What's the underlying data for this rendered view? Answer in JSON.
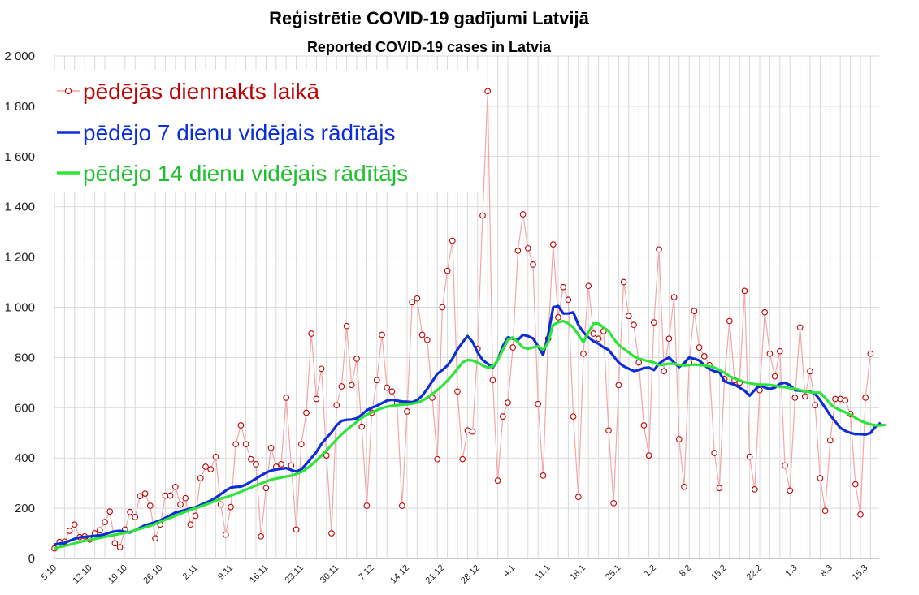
{
  "chart_data": {
    "type": "line",
    "title": "Reģistrētie COVID-19 gadījumi Latvijā",
    "subtitle": "Reported COVID-19 cases in Latvia",
    "xlabel": "",
    "ylabel": "",
    "ylim": [
      0,
      2000
    ],
    "yticks": [
      0,
      200,
      400,
      600,
      800,
      1000,
      1200,
      1400,
      1600,
      1800,
      2000
    ],
    "ytick_labels": [
      "0",
      "200",
      "400",
      "600",
      "800",
      "1 000",
      "1 200",
      "1 400",
      "1 600",
      "1 800",
      "2 000"
    ],
    "x_start": "2020-10-05",
    "xtick_labels": [
      "5.10",
      "12.10",
      "19.10",
      "26.10",
      "2.11",
      "9.11",
      "16.11",
      "23.11",
      "30.11",
      "7.12",
      "14.12",
      "21.12",
      "28.12",
      "4.1",
      "11.1",
      "18.1",
      "25.1",
      "1.2",
      "8.2",
      "15.2",
      "22.2",
      "1.3",
      "8.3",
      "15.3"
    ],
    "grid": true,
    "legend": "top-left",
    "series": [
      {
        "name": "pēdējās diennakts laikā",
        "color": "#c00000",
        "line_color": "#f4a6a6",
        "marker": "circle",
        "values": [
          40,
          66,
          67,
          110,
          135,
          85,
          88,
          75,
          100,
          112,
          145,
          187,
          60,
          45,
          115,
          185,
          165,
          248,
          258,
          210,
          80,
          135,
          250,
          250,
          285,
          215,
          240,
          135,
          170,
          320,
          365,
          355,
          405,
          215,
          95,
          205,
          455,
          530,
          455,
          395,
          375,
          88,
          280,
          440,
          365,
          375,
          640,
          370,
          115,
          455,
          580,
          895,
          635,
          755,
          410,
          100,
          610,
          685,
          925,
          690,
          795,
          525,
          210,
          580,
          710,
          890,
          680,
          665,
          620,
          210,
          585,
          1020,
          1035,
          890,
          870,
          640,
          395,
          1000,
          1145,
          1265,
          665,
          395,
          510,
          505,
          835,
          1365,
          1860,
          710,
          310,
          565,
          620,
          840,
          1225,
          1370,
          1235,
          1170,
          615,
          330,
          875,
          1250,
          960,
          1080,
          1030,
          565,
          245,
          815,
          1085,
          895,
          875,
          905,
          510,
          220,
          690,
          1100,
          965,
          930,
          780,
          530,
          410,
          940,
          1230,
          745,
          875,
          1040,
          475,
          285,
          780,
          985,
          840,
          805,
          770,
          420,
          280,
          715,
          945,
          710,
          700,
          1065,
          405,
          275,
          670,
          980,
          815,
          725,
          825,
          370,
          270,
          640,
          920,
          645,
          745,
          610,
          320,
          190,
          470,
          635,
          635,
          630,
          575,
          295,
          175,
          640,
          815
        ]
      },
      {
        "name": "pēdējo 7 dienu vidējais rādītājs",
        "color": "#0b2ed8",
        "values": [
          55,
          59,
          62,
          70,
          78,
          84,
          86,
          88,
          90,
          92,
          96,
          103,
          108,
          110,
          106,
          103,
          112,
          122,
          132,
          138,
          144,
          152,
          162,
          172,
          183,
          188,
          193,
          200,
          204,
          213,
          222,
          230,
          242,
          256,
          270,
          282,
          285,
          286,
          294,
          306,
          318,
          330,
          342,
          350,
          354,
          357,
          360,
          352,
          346,
          354,
          376,
          400,
          424,
          456,
          480,
          502,
          530,
          548,
          552,
          553,
          558,
          572,
          590,
          600,
          608,
          618,
          628,
          632,
          628,
          625,
          624,
          622,
          630,
          648,
          675,
          705,
          735,
          750,
          768,
          795,
          832,
          860,
          885,
          862,
          820,
          790,
          775,
          760,
          790,
          845,
          880,
          875,
          870,
          890,
          885,
          876,
          845,
          810,
          890,
          1000,
          1005,
          975,
          975,
          980,
          930,
          900,
          880,
          865,
          855,
          840,
          830,
          805,
          780,
          765,
          755,
          746,
          750,
          758,
          760,
          750,
          775,
          790,
          800,
          780,
          762,
          778,
          800,
          795,
          788,
          770,
          754,
          745,
          742,
          705,
          698,
          692,
          680,
          668,
          648,
          670,
          690,
          680,
          675,
          680,
          695,
          700,
          690,
          670,
          668,
          665,
          665,
          655,
          630,
          600,
          570,
          545,
          520,
          508,
          500,
          495,
          495,
          493,
          500,
          525,
          540
        ]
      },
      {
        "name": "pēdējo 14 dienu vidējais rādītājs",
        "color": "#2ee43a",
        "values": [
          40,
          46,
          50,
          55,
          60,
          66,
          70,
          74,
          78,
          82,
          86,
          90,
          94,
          98,
          102,
          106,
          112,
          118,
          124,
          130,
          138,
          146,
          154,
          162,
          170,
          178,
          186,
          194,
          200,
          207,
          214,
          222,
          230,
          238,
          244,
          250,
          258,
          266,
          274,
          282,
          290,
          298,
          306,
          314,
          318,
          322,
          326,
          330,
          336,
          344,
          356,
          372,
          390,
          410,
          430,
          452,
          474,
          494,
          512,
          528,
          544,
          560,
          572,
          582,
          590,
          598,
          604,
          608,
          610,
          612,
          614,
          616,
          620,
          628,
          640,
          655,
          670,
          688,
          708,
          730,
          755,
          780,
          790,
          788,
          780,
          768,
          760,
          764,
          790,
          830,
          870,
          880,
          860,
          840,
          835,
          840,
          845,
          830,
          860,
          930,
          940,
          945,
          935,
          920,
          890,
          860,
          900,
          935,
          935,
          920,
          905,
          875,
          850,
          835,
          820,
          805,
          795,
          790,
          785,
          780,
          770,
          772,
          775,
          775,
          770,
          768,
          770,
          772,
          770,
          768,
          765,
          760,
          750,
          740,
          726,
          716,
          710,
          702,
          698,
          694,
          692,
          692,
          690,
          688,
          684,
          682,
          678,
          675,
          670,
          665,
          662,
          660,
          660,
          640,
          615,
          600,
          590,
          582,
          572,
          560,
          548,
          540,
          534,
          530,
          530,
          532
        ]
      }
    ]
  }
}
